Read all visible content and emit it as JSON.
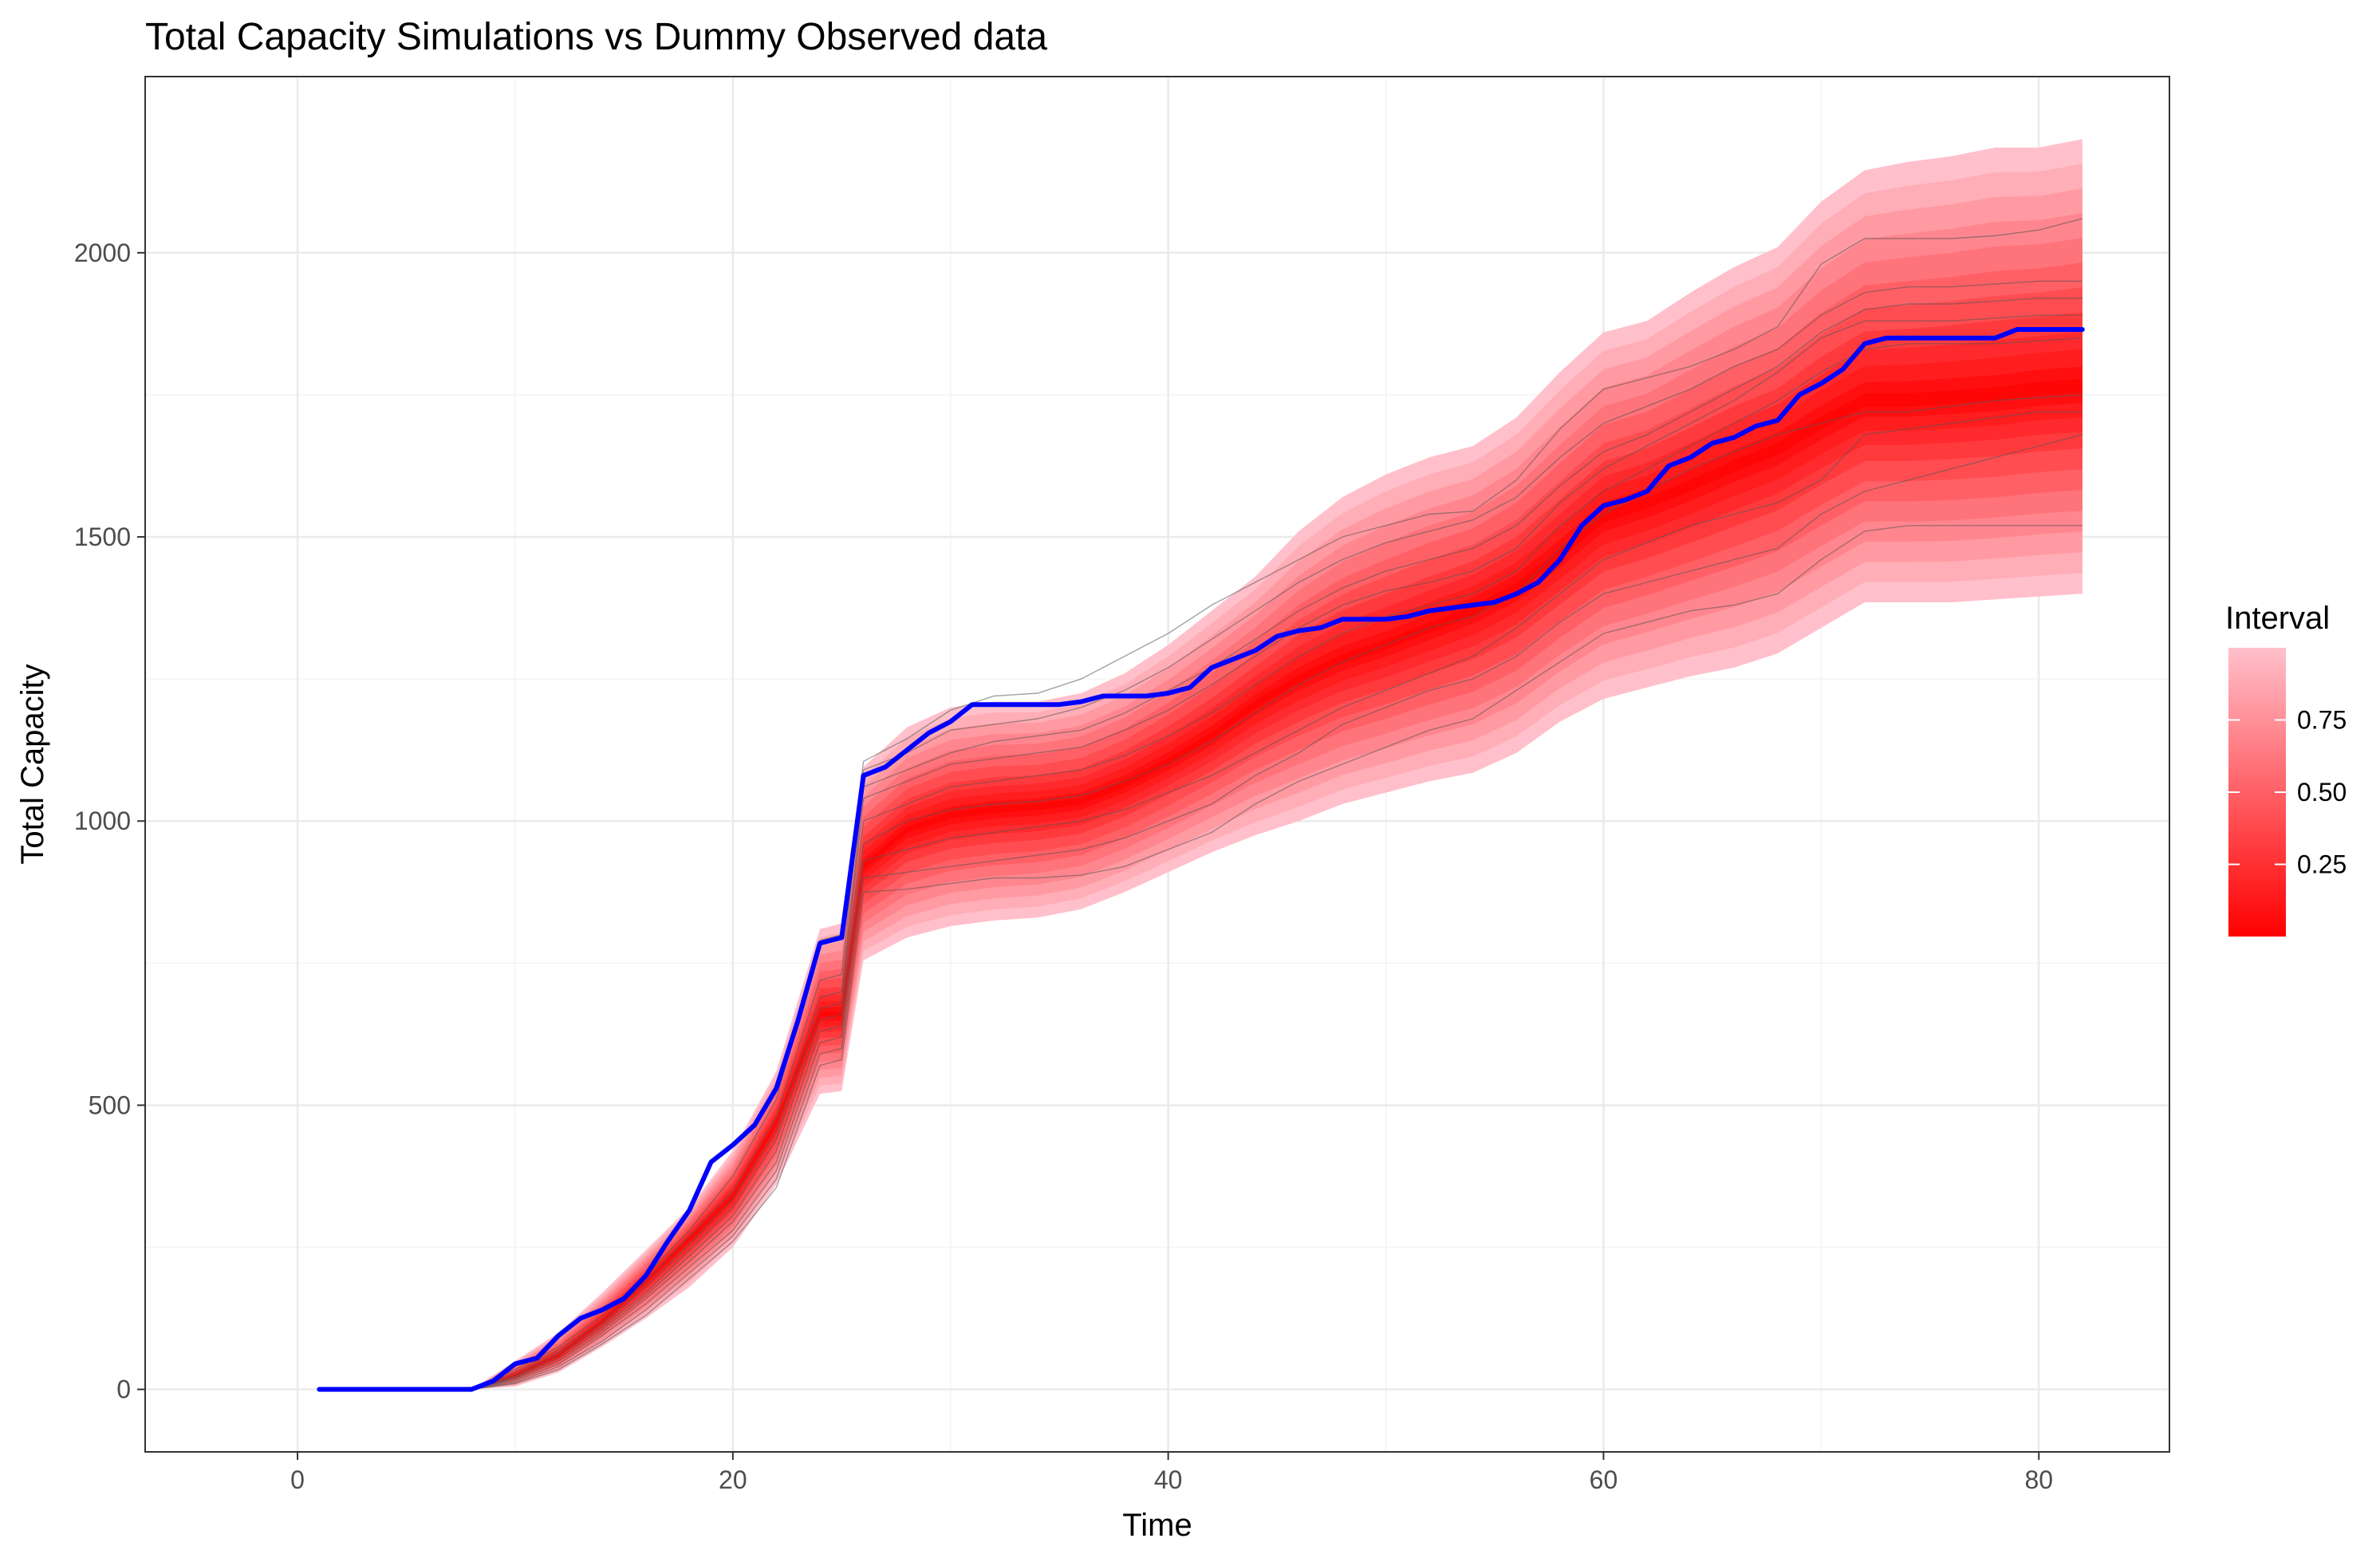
{
  "chart_data": {
    "type": "line",
    "title": "Total Capacity Simulations vs Dummy Observed data",
    "xlabel": "Time",
    "ylabel": "Total Capacity",
    "xlim": [
      -7,
      86
    ],
    "ylim": [
      -110,
      2310
    ],
    "x_ticks": [
      0,
      20,
      40,
      60,
      80
    ],
    "x_tick_labels": [
      "0",
      "20",
      "40",
      "60",
      "80"
    ],
    "y_ticks": [
      0,
      500,
      1000,
      1500,
      2000
    ],
    "y_tick_labels": [
      "0",
      "500",
      "1000",
      "1500",
      "2000"
    ],
    "grid": true,
    "legend": {
      "title": "Interval",
      "position": "right",
      "type": "colorbar",
      "range": [
        0,
        1
      ],
      "ticks": [
        0.25,
        0.5,
        0.75
      ],
      "tick_labels": [
        "0.25",
        "0.50",
        "0.75"
      ],
      "low_color": "#ff0000",
      "high_color": "#ffc0cb"
    },
    "band": {
      "name": "Interval",
      "x": [
        1,
        8,
        10,
        12,
        14,
        16,
        18,
        20,
        22,
        24,
        25,
        26,
        28,
        30,
        32,
        34,
        36,
        38,
        40,
        42,
        44,
        46,
        48,
        50,
        52,
        54,
        56,
        58,
        60,
        62,
        64,
        66,
        68,
        70,
        72,
        74,
        76,
        78,
        80,
        82
      ],
      "median": [
        0,
        0,
        25,
        60,
        120,
        190,
        265,
        340,
        470,
        660,
        660,
        920,
        985,
        1010,
        1020,
        1025,
        1035,
        1065,
        1105,
        1150,
        1205,
        1250,
        1285,
        1310,
        1340,
        1370,
        1410,
        1470,
        1535,
        1560,
        1590,
        1625,
        1655,
        1700,
        1740,
        1740,
        1745,
        1750,
        1760,
        1765
      ],
      "lower": [
        0,
        0,
        5,
        30,
        75,
        125,
        180,
        250,
        360,
        520,
        525,
        755,
        795,
        815,
        825,
        830,
        845,
        875,
        910,
        945,
        975,
        1000,
        1030,
        1050,
        1070,
        1085,
        1120,
        1175,
        1215,
        1235,
        1255,
        1270,
        1295,
        1340,
        1385,
        1385,
        1385,
        1390,
        1395,
        1400
      ],
      "upper": [
        0,
        0,
        50,
        100,
        170,
        245,
        320,
        420,
        560,
        810,
        820,
        1095,
        1165,
        1200,
        1210,
        1210,
        1225,
        1260,
        1310,
        1370,
        1430,
        1510,
        1570,
        1610,
        1640,
        1660,
        1710,
        1790,
        1860,
        1880,
        1930,
        1975,
        2010,
        2090,
        2145,
        2160,
        2170,
        2185,
        2185,
        2200
      ]
    },
    "series": [
      {
        "color": "#0000ff",
        "x": [
          1,
          2,
          3,
          4,
          5,
          6,
          7,
          8,
          9,
          10,
          11,
          12,
          13,
          14,
          15,
          16,
          17,
          18,
          19,
          20,
          21,
          22,
          23,
          24,
          25,
          26,
          27,
          28,
          29,
          30,
          31,
          32,
          33,
          34,
          35,
          36,
          37,
          38,
          39,
          40,
          41,
          42,
          43,
          44,
          45,
          46,
          47,
          48,
          49,
          50,
          51,
          52,
          53,
          54,
          55,
          56,
          57,
          58,
          59,
          60,
          61,
          62,
          63,
          64,
          65,
          66,
          67,
          68,
          69,
          70,
          71,
          72,
          73,
          74,
          75,
          76,
          77,
          78,
          79,
          80,
          81,
          82
        ],
        "y": [
          0,
          0,
          0,
          0,
          0,
          0,
          0,
          0,
          15,
          45,
          55,
          95,
          125,
          140,
          160,
          200,
          260,
          315,
          400,
          430,
          465,
          530,
          650,
          785,
          795,
          1080,
          1095,
          1125,
          1155,
          1175,
          1205,
          1205,
          1205,
          1205,
          1205,
          1210,
          1220,
          1220,
          1220,
          1225,
          1235,
          1270,
          1285,
          1300,
          1325,
          1335,
          1340,
          1355,
          1355,
          1355,
          1360,
          1370,
          1375,
          1380,
          1385,
          1400,
          1420,
          1460,
          1520,
          1555,
          1565,
          1580,
          1625,
          1640,
          1665,
          1675,
          1695,
          1705,
          1750,
          1770,
          1795,
          1840,
          1850,
          1850,
          1850,
          1850,
          1850,
          1850,
          1865,
          1865,
          1865,
          1865
        ]
      }
    ],
    "simulations": [
      {
        "x": [
          1,
          8,
          10,
          12,
          14,
          16,
          18,
          20,
          22,
          24,
          25,
          26,
          28,
          30,
          32,
          34,
          36,
          38,
          40,
          42,
          44,
          46,
          48,
          50,
          52,
          54,
          56,
          58,
          60,
          62,
          64,
          66,
          68,
          70,
          72,
          74,
          76,
          78,
          80,
          82
        ],
        "y": [
          0,
          0,
          35,
          75,
          130,
          200,
          280,
          375,
          510,
          790,
          800,
          1105,
          1145,
          1195,
          1220,
          1225,
          1250,
          1290,
          1330,
          1380,
          1420,
          1460,
          1500,
          1520,
          1540,
          1545,
          1600,
          1690,
          1760,
          1780,
          1800,
          1830,
          1870,
          1980,
          2025,
          2025,
          2025,
          2030,
          2040,
          2060
        ]
      },
      {
        "x": [
          1,
          8,
          10,
          12,
          14,
          16,
          18,
          20,
          22,
          24,
          25,
          26,
          28,
          30,
          32,
          34,
          36,
          38,
          40,
          42,
          44,
          46,
          48,
          50,
          52,
          54,
          56,
          58,
          60,
          62,
          64,
          66,
          68,
          70,
          72,
          74,
          76,
          78,
          80,
          82
        ],
        "y": [
          0,
          0,
          30,
          70,
          120,
          190,
          270,
          350,
          480,
          720,
          730,
          1090,
          1120,
          1160,
          1170,
          1180,
          1200,
          1230,
          1270,
          1320,
          1370,
          1420,
          1460,
          1490,
          1510,
          1530,
          1570,
          1640,
          1700,
          1730,
          1760,
          1800,
          1830,
          1890,
          1930,
          1940,
          1940,
          1945,
          1950,
          1950
        ]
      },
      {
        "x": [
          1,
          8,
          10,
          12,
          14,
          16,
          18,
          20,
          22,
          24,
          25,
          26,
          28,
          30,
          32,
          34,
          36,
          38,
          40,
          42,
          44,
          46,
          48,
          50,
          52,
          54,
          56,
          58,
          60,
          62,
          64,
          66,
          68,
          70,
          72,
          74,
          76,
          78,
          80,
          82
        ],
        "y": [
          0,
          0,
          25,
          65,
          115,
          180,
          255,
          335,
          455,
          690,
          700,
          1060,
          1090,
          1120,
          1140,
          1150,
          1160,
          1190,
          1230,
          1270,
          1320,
          1370,
          1410,
          1440,
          1460,
          1480,
          1520,
          1590,
          1650,
          1680,
          1720,
          1760,
          1800,
          1860,
          1900,
          1910,
          1910,
          1915,
          1920,
          1920
        ]
      },
      {
        "x": [
          1,
          8,
          10,
          12,
          14,
          16,
          18,
          20,
          22,
          24,
          25,
          26,
          28,
          30,
          32,
          34,
          36,
          38,
          40,
          42,
          44,
          46,
          48,
          50,
          52,
          54,
          56,
          58,
          60,
          62,
          64,
          66,
          68,
          70,
          72,
          74,
          76,
          78,
          80,
          82
        ],
        "y": [
          0,
          0,
          22,
          60,
          110,
          170,
          245,
          320,
          440,
          670,
          680,
          1040,
          1070,
          1100,
          1110,
          1120,
          1130,
          1160,
          1195,
          1240,
          1290,
          1340,
          1380,
          1405,
          1420,
          1440,
          1480,
          1560,
          1620,
          1660,
          1700,
          1740,
          1790,
          1850,
          1880,
          1880,
          1880,
          1885,
          1890,
          1890
        ]
      },
      {
        "x": [
          1,
          8,
          10,
          12,
          14,
          16,
          18,
          20,
          22,
          24,
          25,
          26,
          28,
          30,
          32,
          34,
          36,
          38,
          40,
          42,
          44,
          46,
          48,
          50,
          52,
          54,
          56,
          58,
          60,
          62,
          64,
          66,
          68,
          70,
          72,
          74,
          76,
          78,
          80,
          82
        ],
        "y": [
          0,
          0,
          20,
          55,
          105,
          165,
          235,
          305,
          420,
          650,
          660,
          1000,
          1030,
          1060,
          1070,
          1080,
          1090,
          1115,
          1150,
          1190,
          1240,
          1290,
          1330,
          1360,
          1380,
          1400,
          1440,
          1520,
          1580,
          1620,
          1660,
          1700,
          1740,
          1790,
          1830,
          1840,
          1840,
          1840,
          1845,
          1850
        ]
      },
      {
        "x": [
          1,
          8,
          10,
          12,
          14,
          16,
          18,
          20,
          22,
          24,
          25,
          26,
          28,
          30,
          32,
          34,
          36,
          38,
          40,
          42,
          44,
          46,
          48,
          50,
          52,
          54,
          56,
          58,
          60,
          62,
          64,
          66,
          68,
          70,
          72,
          74,
          76,
          78,
          80,
          82
        ],
        "y": [
          0,
          0,
          18,
          50,
          100,
          160,
          225,
          295,
          400,
          630,
          640,
          960,
          1000,
          1020,
          1030,
          1035,
          1045,
          1070,
          1100,
          1140,
          1190,
          1240,
          1280,
          1310,
          1340,
          1360,
          1400,
          1480,
          1540,
          1580,
          1620,
          1650,
          1680,
          1700,
          1720,
          1720,
          1730,
          1740,
          1745,
          1750
        ]
      },
      {
        "x": [
          1,
          8,
          10,
          12,
          14,
          16,
          18,
          20,
          22,
          24,
          25,
          26,
          28,
          30,
          32,
          34,
          36,
          38,
          40,
          42,
          44,
          46,
          48,
          50,
          52,
          54,
          56,
          58,
          60,
          62,
          64,
          66,
          68,
          70,
          72,
          74,
          76,
          78,
          80,
          82
        ],
        "y": [
          0,
          0,
          15,
          45,
          95,
          150,
          215,
          280,
          385,
          610,
          620,
          930,
          950,
          970,
          980,
          990,
          1000,
          1020,
          1050,
          1080,
          1120,
          1160,
          1200,
          1230,
          1260,
          1290,
          1340,
          1400,
          1460,
          1490,
          1520,
          1540,
          1560,
          1600,
          1680,
          1690,
          1700,
          1710,
          1720,
          1720
        ]
      },
      {
        "x": [
          1,
          8,
          10,
          12,
          14,
          16,
          18,
          20,
          22,
          24,
          25,
          26,
          28,
          30,
          32,
          34,
          36,
          38,
          40,
          42,
          44,
          46,
          48,
          50,
          52,
          54,
          56,
          58,
          60,
          62,
          64,
          66,
          68,
          70,
          72,
          74,
          76,
          78,
          80,
          82
        ],
        "y": [
          0,
          0,
          12,
          40,
          85,
          140,
          205,
          270,
          370,
          590,
          600,
          900,
          910,
          920,
          930,
          940,
          950,
          970,
          1000,
          1030,
          1080,
          1120,
          1170,
          1200,
          1230,
          1250,
          1290,
          1350,
          1400,
          1420,
          1440,
          1460,
          1480,
          1540,
          1580,
          1600,
          1620,
          1640,
          1660,
          1680
        ]
      },
      {
        "x": [
          1,
          8,
          10,
          12,
          14,
          16,
          18,
          20,
          22,
          24,
          25,
          26,
          28,
          30,
          32,
          34,
          36,
          38,
          40,
          42,
          44,
          46,
          48,
          50,
          52,
          54,
          56,
          58,
          60,
          62,
          64,
          66,
          68,
          70,
          72,
          74,
          76,
          78,
          80,
          82
        ],
        "y": [
          0,
          0,
          10,
          35,
          80,
          130,
          195,
          260,
          355,
          570,
          580,
          875,
          880,
          890,
          900,
          900,
          905,
          920,
          950,
          980,
          1030,
          1070,
          1100,
          1130,
          1160,
          1180,
          1230,
          1280,
          1330,
          1350,
          1370,
          1380,
          1400,
          1460,
          1510,
          1520,
          1520,
          1520,
          1520,
          1520
        ]
      }
    ]
  }
}
